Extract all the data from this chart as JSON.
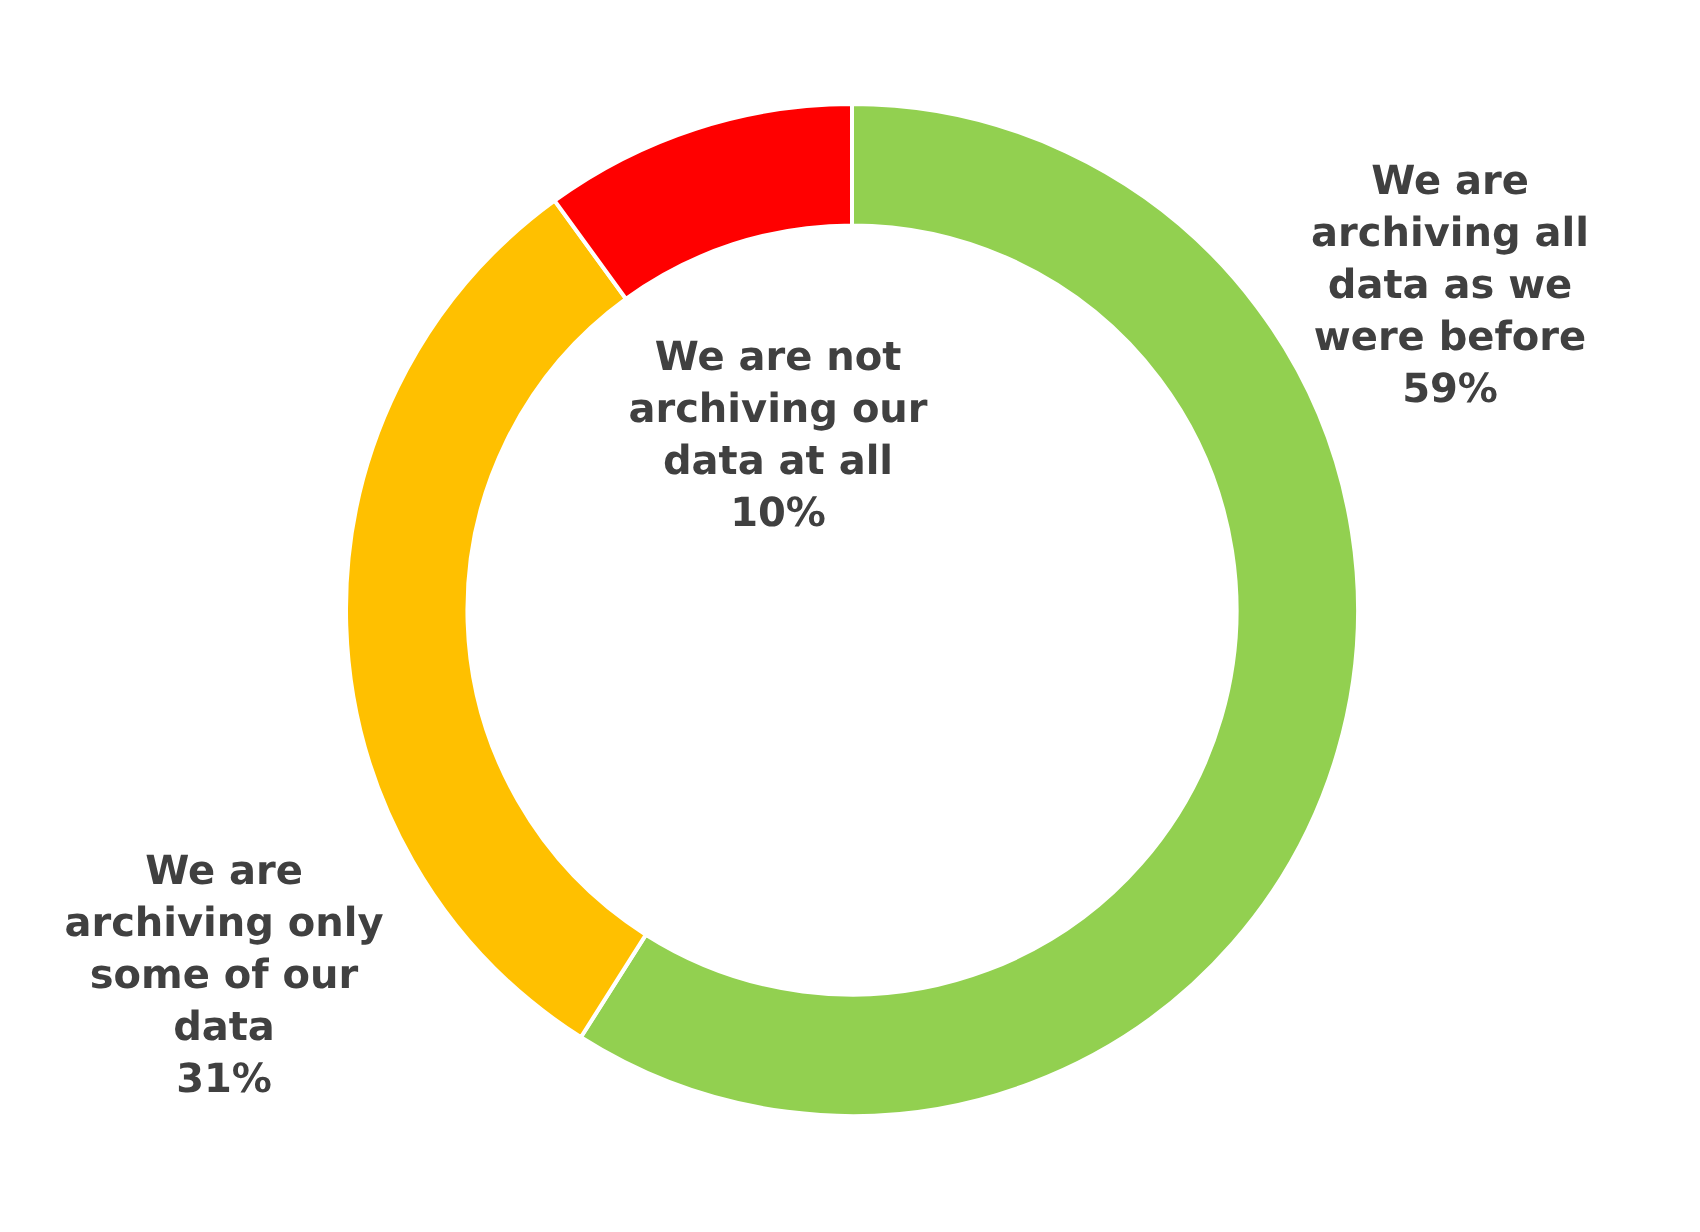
{
  "chart_data": {
    "type": "donut",
    "categories": [
      "We are archiving all data as we were before",
      "We are archiving only some of our data",
      "We are not archiving our data at all"
    ],
    "values": [
      59,
      31,
      10
    ],
    "colors": [
      "#92d050",
      "#ffc000",
      "#ff0000"
    ],
    "value_labels": [
      "59%",
      "31%",
      "10%"
    ]
  }
}
